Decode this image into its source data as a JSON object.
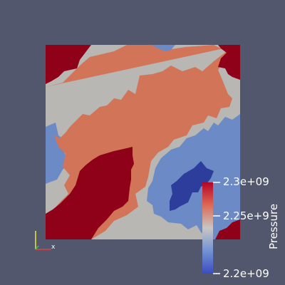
{
  "scene": {
    "background": "#52576e",
    "variable_title": "Pressure",
    "text_color": "#ffffff"
  },
  "colormap": {
    "name": "Cool to Warm",
    "min": 2200000000.0,
    "max": 2300000000.0,
    "tick_labels": [
      "2.3e+09",
      "2.25e+9",
      "2.2e+09"
    ],
    "colors": {
      "high": "#b40426",
      "upper_mid": "#dd6a54",
      "mid": "#c9c6c3",
      "lower_mid": "#7393d4",
      "low": "#3b4cc0"
    }
  },
  "mesh": {
    "band_colors": [
      "#8f0019",
      "#d27458",
      "#b8b7b3",
      "#6c8ac5",
      "#2c3d9c"
    ]
  },
  "orientation_axes": {
    "x_color": "#e04040",
    "y_color": "#e8e840",
    "z_color": "#40c040",
    "x_label": "x"
  }
}
